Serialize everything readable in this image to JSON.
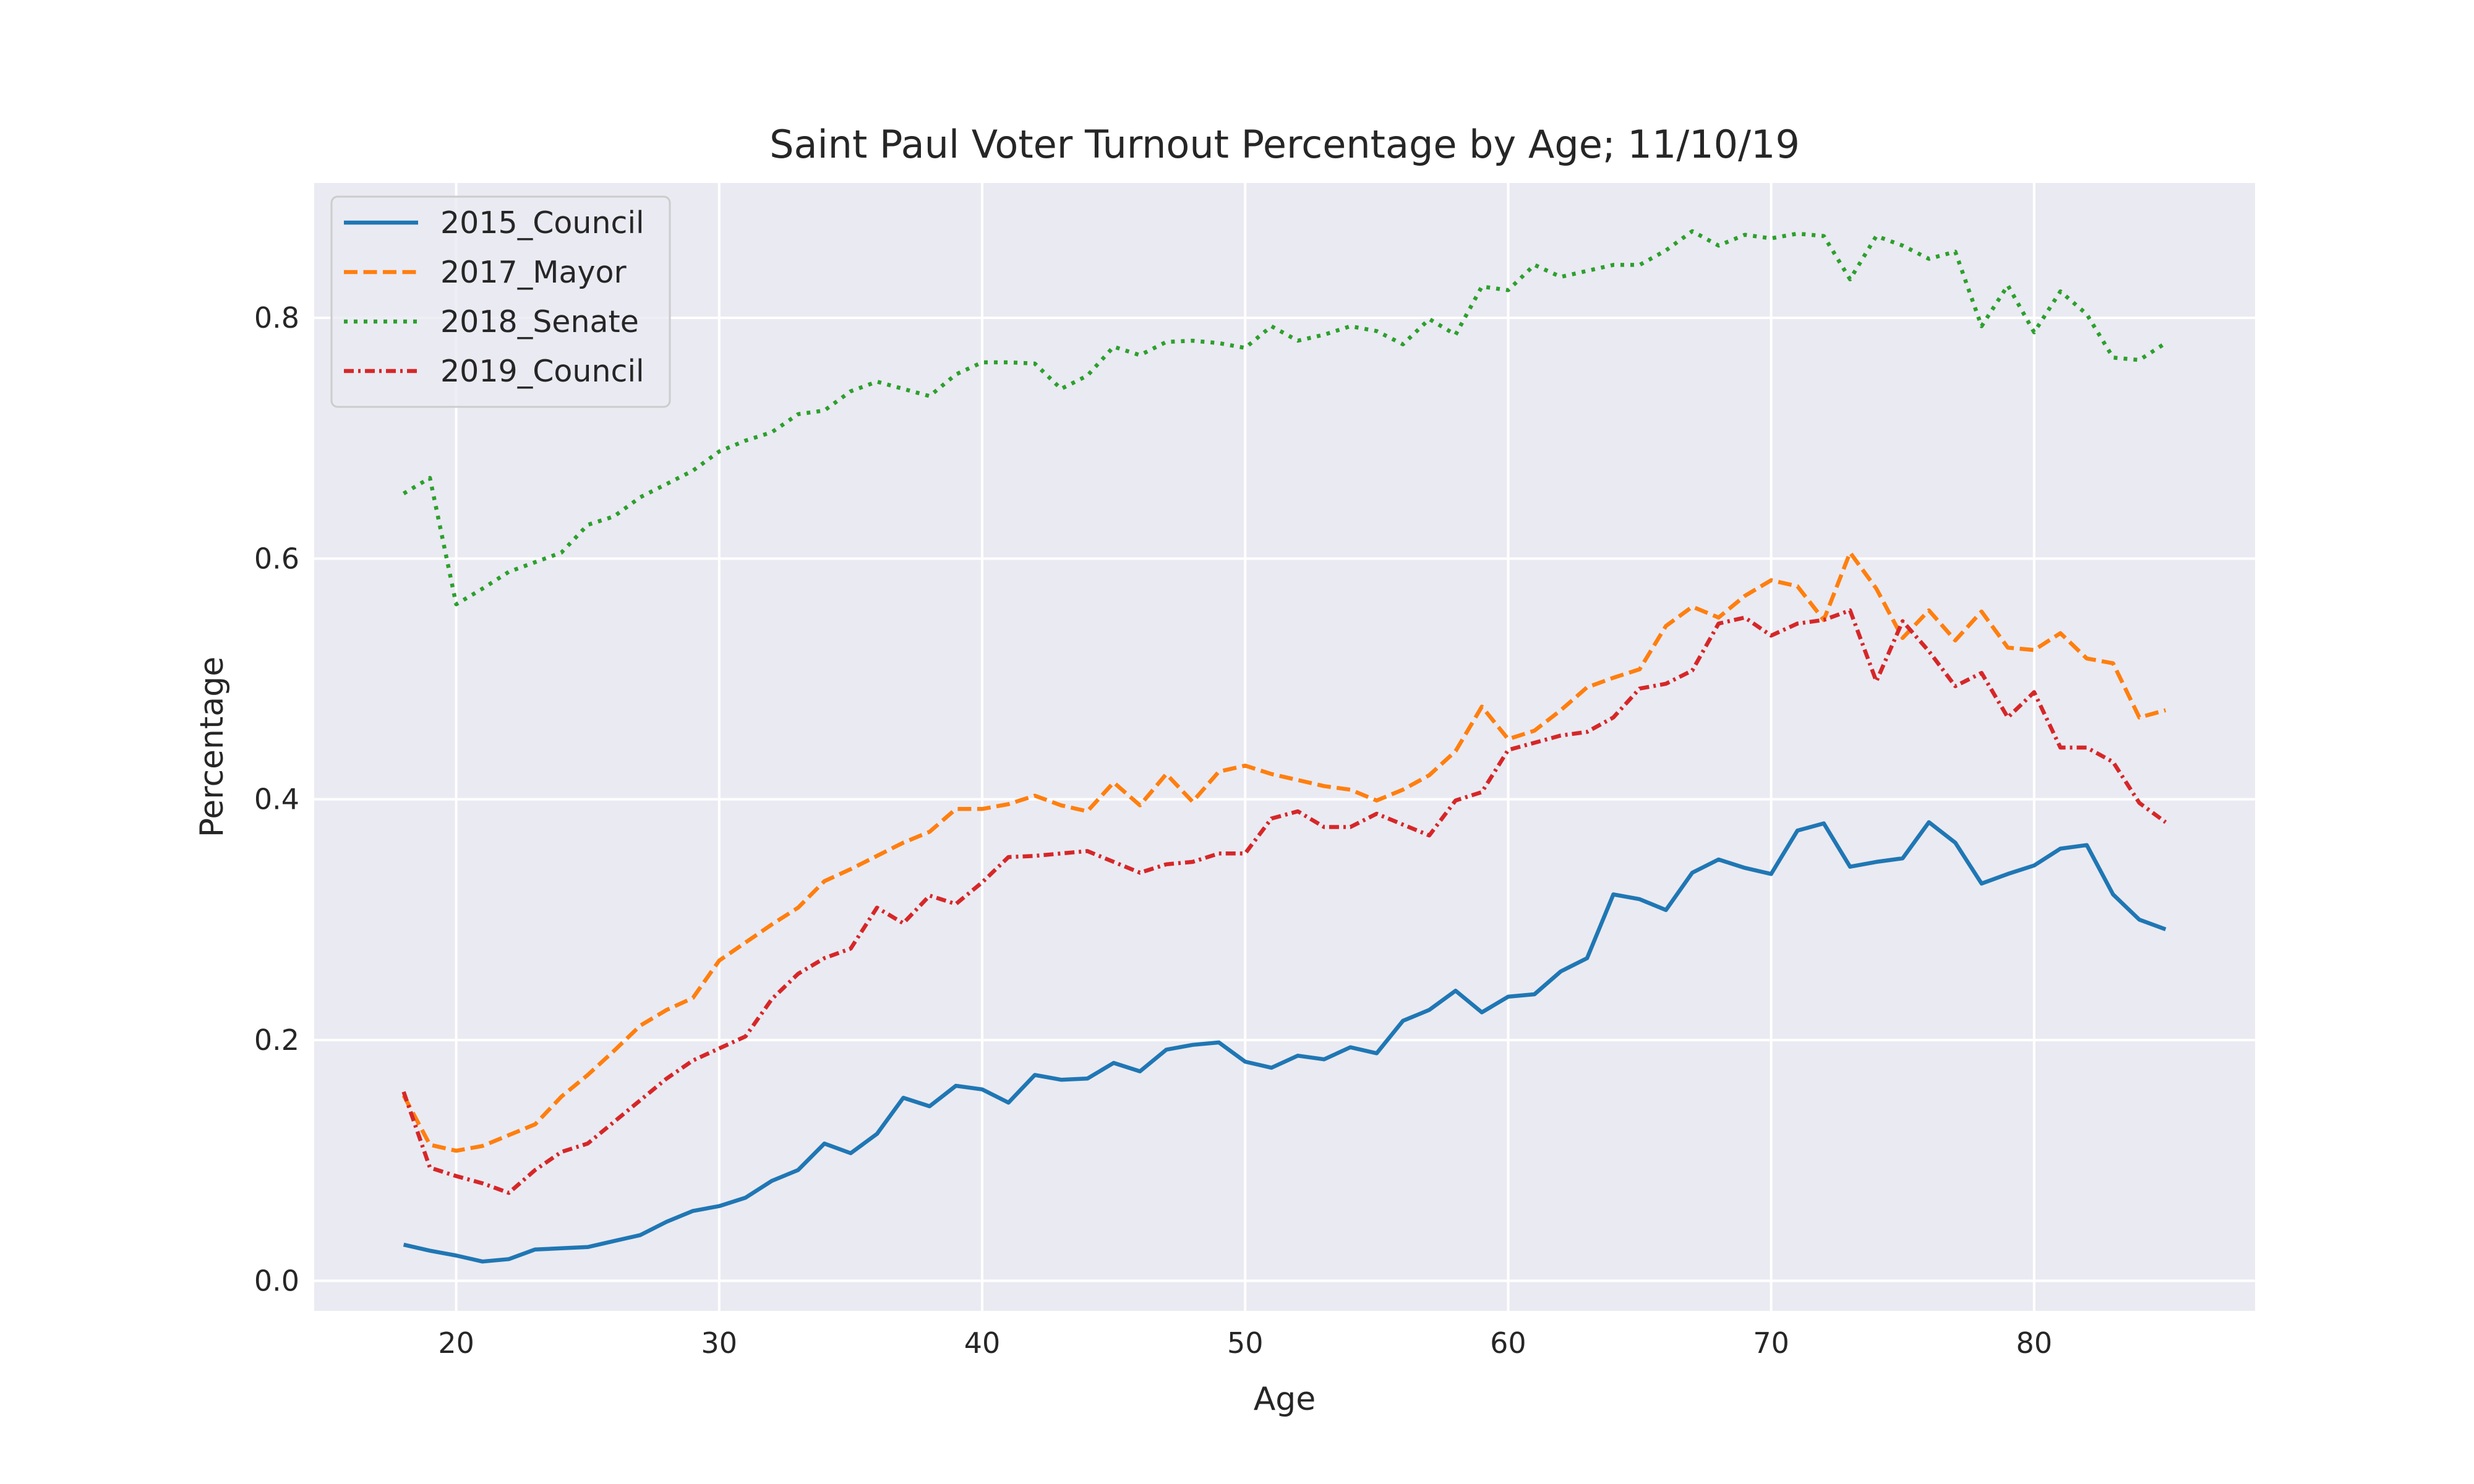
{
  "chart_data": {
    "type": "line",
    "title": "Saint Paul Voter Turnout Percentage by Age; 11/10/19",
    "xlabel": "Age",
    "ylabel": "Percentage",
    "xlim": [
      14.6,
      88.4
    ],
    "ylim": [
      -0.025,
      0.912
    ],
    "xticks": [
      20,
      30,
      40,
      50,
      60,
      70,
      80
    ],
    "yticks": [
      0.0,
      0.2,
      0.4,
      0.6,
      0.8
    ],
    "ytick_labels": [
      "0.0",
      "0.2",
      "0.4",
      "0.6",
      "0.8"
    ],
    "grid": true,
    "legend_position": "top-left",
    "x": [
      18,
      19,
      20,
      21,
      22,
      23,
      24,
      25,
      26,
      27,
      28,
      29,
      30,
      31,
      32,
      33,
      34,
      35,
      36,
      37,
      38,
      39,
      40,
      41,
      42,
      43,
      44,
      45,
      46,
      47,
      48,
      49,
      50,
      51,
      52,
      53,
      54,
      55,
      56,
      57,
      58,
      59,
      60,
      61,
      62,
      63,
      64,
      65,
      66,
      67,
      68,
      69,
      70,
      71,
      72,
      73,
      74,
      75,
      76,
      77,
      78,
      79,
      80,
      81,
      82,
      83,
      84,
      85
    ],
    "series": [
      {
        "name": "2015_Council",
        "color": "#1f77b4",
        "dash": "solid",
        "values": [
          0.03,
          0.025,
          0.021,
          0.016,
          0.018,
          0.026,
          0.027,
          0.028,
          0.033,
          0.038,
          0.049,
          0.058,
          0.062,
          0.069,
          0.083,
          0.092,
          0.114,
          0.106,
          0.122,
          0.152,
          0.145,
          0.162,
          0.159,
          0.148,
          0.171,
          0.167,
          0.168,
          0.181,
          0.174,
          0.192,
          0.196,
          0.198,
          0.182,
          0.177,
          0.187,
          0.184,
          0.194,
          0.189,
          0.216,
          0.225,
          0.241,
          0.223,
          0.236,
          0.238,
          0.257,
          0.268,
          0.321,
          0.317,
          0.308,
          0.339,
          0.35,
          0.343,
          0.338,
          0.374,
          0.38,
          0.344,
          0.348,
          0.351,
          0.381,
          0.364,
          0.33,
          0.338,
          0.345,
          0.359,
          0.362,
          0.321,
          0.3,
          0.292
        ]
      },
      {
        "name": "2017_Mayor",
        "color": "#ff7f0e",
        "dash": "dashed",
        "values": [
          0.154,
          0.113,
          0.108,
          0.112,
          0.121,
          0.13,
          0.153,
          0.171,
          0.191,
          0.212,
          0.225,
          0.235,
          0.266,
          0.281,
          0.296,
          0.31,
          0.332,
          0.342,
          0.353,
          0.364,
          0.373,
          0.392,
          0.392,
          0.396,
          0.403,
          0.395,
          0.39,
          0.414,
          0.395,
          0.421,
          0.398,
          0.423,
          0.428,
          0.421,
          0.416,
          0.411,
          0.408,
          0.399,
          0.408,
          0.42,
          0.44,
          0.477,
          0.45,
          0.457,
          0.474,
          0.493,
          0.501,
          0.508,
          0.544,
          0.56,
          0.551,
          0.569,
          0.582,
          0.577,
          0.549,
          0.605,
          0.575,
          0.534,
          0.557,
          0.532,
          0.556,
          0.526,
          0.524,
          0.538,
          0.517,
          0.513,
          0.468,
          0.474
        ]
      },
      {
        "name": "2018_Senate",
        "color": "#2ca02c",
        "dash": "dotted",
        "values": [
          0.654,
          0.667,
          0.562,
          0.575,
          0.589,
          0.597,
          0.605,
          0.628,
          0.635,
          0.651,
          0.662,
          0.673,
          0.689,
          0.698,
          0.705,
          0.72,
          0.723,
          0.739,
          0.747,
          0.741,
          0.735,
          0.753,
          0.763,
          0.763,
          0.762,
          0.741,
          0.752,
          0.776,
          0.769,
          0.78,
          0.781,
          0.779,
          0.775,
          0.793,
          0.781,
          0.786,
          0.793,
          0.789,
          0.778,
          0.799,
          0.786,
          0.826,
          0.823,
          0.844,
          0.834,
          0.839,
          0.844,
          0.844,
          0.856,
          0.872,
          0.86,
          0.869,
          0.866,
          0.87,
          0.868,
          0.832,
          0.868,
          0.86,
          0.849,
          0.855,
          0.793,
          0.827,
          0.788,
          0.822,
          0.803,
          0.767,
          0.765,
          0.779
        ]
      },
      {
        "name": "2019_Council",
        "color": "#d62728",
        "dash": "dashdot",
        "values": [
          0.157,
          0.094,
          0.087,
          0.081,
          0.073,
          0.092,
          0.107,
          0.114,
          0.132,
          0.15,
          0.168,
          0.183,
          0.193,
          0.203,
          0.234,
          0.255,
          0.268,
          0.276,
          0.31,
          0.297,
          0.32,
          0.313,
          0.331,
          0.352,
          0.353,
          0.355,
          0.357,
          0.348,
          0.339,
          0.346,
          0.348,
          0.355,
          0.355,
          0.384,
          0.39,
          0.377,
          0.377,
          0.388,
          0.379,
          0.37,
          0.399,
          0.406,
          0.441,
          0.447,
          0.453,
          0.456,
          0.468,
          0.492,
          0.496,
          0.507,
          0.546,
          0.551,
          0.536,
          0.546,
          0.549,
          0.557,
          0.498,
          0.548,
          0.523,
          0.494,
          0.505,
          0.468,
          0.489,
          0.443,
          0.443,
          0.431,
          0.397,
          0.381
        ]
      }
    ]
  }
}
